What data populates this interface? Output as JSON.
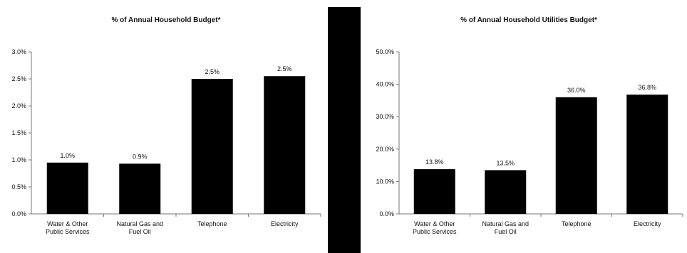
{
  "chart_data": [
    {
      "type": "bar",
      "title": "% of Annual Household Budget*",
      "xlabel": "",
      "ylabel": "",
      "ylim": [
        0,
        3.0
      ],
      "yticks": [
        "0.0%",
        "0.5%",
        "1.0%",
        "1.5%",
        "2.0%",
        "2.5%",
        "3.0%"
      ],
      "categories": [
        [
          "Water & Other",
          "Public Services"
        ],
        [
          "Natural Gas and",
          "Fuel Oil"
        ],
        [
          "Telephone"
        ],
        [
          "Electricity"
        ]
      ],
      "values": [
        0.95,
        0.93,
        2.5,
        2.55
      ],
      "data_labels": [
        "1.0%",
        "0.9%",
        "2.5%",
        "2.5%"
      ],
      "bar_color": "#000000",
      "grid": false,
      "legend": "none"
    },
    {
      "type": "bar",
      "title": "% of Annual Household Utilities Budget*",
      "xlabel": "",
      "ylabel": "",
      "ylim": [
        0,
        50.0
      ],
      "yticks": [
        "0.0%",
        "10.0%",
        "20.0%",
        "30.0%",
        "40.0%",
        "50.0%"
      ],
      "categories": [
        [
          "Water & Other",
          "Public Services"
        ],
        [
          "Natural Gas and",
          "Fuel Oil"
        ],
        [
          "Telephone"
        ],
        [
          "Electricity"
        ]
      ],
      "values": [
        13.8,
        13.5,
        36.0,
        36.8
      ],
      "data_labels": [
        "13.8%",
        "13.5%",
        "36.0%",
        "36.8%"
      ],
      "bar_color": "#000000",
      "grid": false,
      "legend": "none"
    }
  ]
}
